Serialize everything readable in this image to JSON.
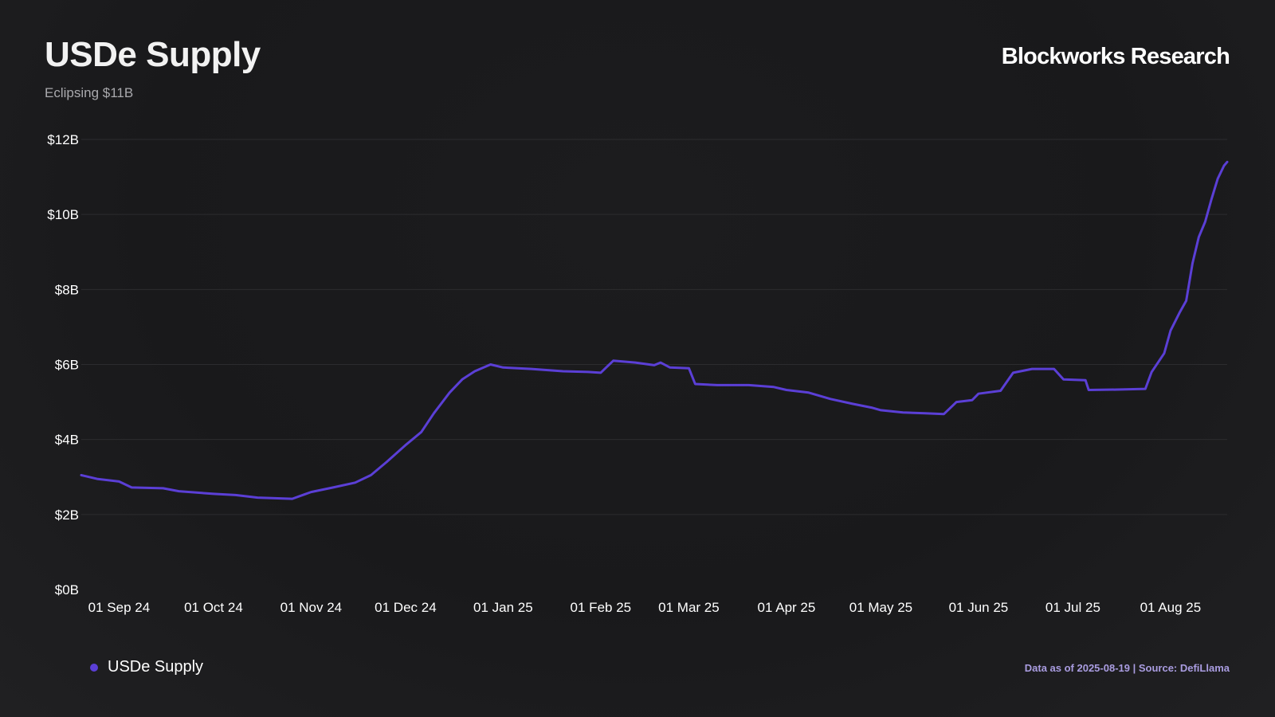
{
  "header": {
    "title": "USDe Supply",
    "subtitle": "Eclipsing $11B",
    "brand": "Blockworks Research"
  },
  "footer": {
    "note": "Data as of 2025-08-19 | Source: DefiLlama"
  },
  "colors": {
    "line": "#5b3fd6",
    "grid": "#2c2c2f",
    "background": "#1b1b1d"
  },
  "chart_data": {
    "type": "line",
    "title": "USDe Supply",
    "subtitle": "Eclipsing $11B",
    "xlabel": "",
    "ylabel": "",
    "ylim": [
      0,
      12
    ],
    "yticks": [
      0,
      2,
      4,
      6,
      8,
      10,
      12
    ],
    "ytick_labels": [
      "$0B",
      "$2B",
      "$4B",
      "$6B",
      "$8B",
      "$10B",
      "$12B"
    ],
    "xticks": [
      "2024-09-01",
      "2024-10-01",
      "2024-11-01",
      "2024-12-01",
      "2025-01-01",
      "2025-02-01",
      "2025-03-01",
      "2025-04-01",
      "2025-05-01",
      "2025-06-01",
      "2025-07-01",
      "2025-08-01"
    ],
    "xtick_labels": [
      "01 Sep 24",
      "01 Oct 24",
      "01 Nov 24",
      "01 Dec 24",
      "01 Jan 25",
      "01 Feb 25",
      "01 Mar 25",
      "01 Apr 25",
      "01 May 25",
      "01 Jun 25",
      "01 Jul 25",
      "01 Aug 25"
    ],
    "xlim": [
      "2024-08-20",
      "2025-08-19"
    ],
    "grid": true,
    "legend": "bottom-left",
    "series": [
      {
        "name": "USDe Supply",
        "color": "#5b3fd6",
        "points": [
          [
            "2024-08-20",
            3.05
          ],
          [
            "2024-08-25",
            2.95
          ],
          [
            "2024-09-01",
            2.88
          ],
          [
            "2024-09-05",
            2.72
          ],
          [
            "2024-09-15",
            2.7
          ],
          [
            "2024-09-20",
            2.62
          ],
          [
            "2024-10-01",
            2.55
          ],
          [
            "2024-10-08",
            2.52
          ],
          [
            "2024-10-15",
            2.45
          ],
          [
            "2024-10-26",
            2.42
          ],
          [
            "2024-11-01",
            2.6
          ],
          [
            "2024-11-08",
            2.72
          ],
          [
            "2024-11-15",
            2.85
          ],
          [
            "2024-11-20",
            3.05
          ],
          [
            "2024-11-25",
            3.4
          ],
          [
            "2024-12-01",
            3.85
          ],
          [
            "2024-12-06",
            4.2
          ],
          [
            "2024-12-10",
            4.7
          ],
          [
            "2024-12-15",
            5.25
          ],
          [
            "2024-12-19",
            5.6
          ],
          [
            "2024-12-23",
            5.82
          ],
          [
            "2024-12-28",
            6.0
          ],
          [
            "2025-01-01",
            5.92
          ],
          [
            "2025-01-10",
            5.88
          ],
          [
            "2025-01-20",
            5.82
          ],
          [
            "2025-01-28",
            5.8
          ],
          [
            "2025-02-01",
            5.78
          ],
          [
            "2025-02-05",
            6.1
          ],
          [
            "2025-02-12",
            6.05
          ],
          [
            "2025-02-18",
            5.98
          ],
          [
            "2025-02-20",
            6.05
          ],
          [
            "2025-02-23",
            5.92
          ],
          [
            "2025-03-01",
            5.9
          ],
          [
            "2025-03-03",
            5.48
          ],
          [
            "2025-03-10",
            5.45
          ],
          [
            "2025-03-20",
            5.45
          ],
          [
            "2025-03-28",
            5.4
          ],
          [
            "2025-04-01",
            5.32
          ],
          [
            "2025-04-08",
            5.25
          ],
          [
            "2025-04-15",
            5.08
          ],
          [
            "2025-04-22",
            4.95
          ],
          [
            "2025-04-28",
            4.85
          ],
          [
            "2025-05-01",
            4.78
          ],
          [
            "2025-05-08",
            4.72
          ],
          [
            "2025-05-15",
            4.7
          ],
          [
            "2025-05-21",
            4.68
          ],
          [
            "2025-05-25",
            5.0
          ],
          [
            "2025-05-30",
            5.05
          ],
          [
            "2025-06-01",
            5.22
          ],
          [
            "2025-06-08",
            5.3
          ],
          [
            "2025-06-12",
            5.78
          ],
          [
            "2025-06-18",
            5.88
          ],
          [
            "2025-06-25",
            5.88
          ],
          [
            "2025-06-28",
            5.6
          ],
          [
            "2025-07-05",
            5.58
          ],
          [
            "2025-07-06",
            5.32
          ],
          [
            "2025-07-15",
            5.33
          ],
          [
            "2025-07-24",
            5.35
          ],
          [
            "2025-07-26",
            5.8
          ],
          [
            "2025-07-30",
            6.3
          ],
          [
            "2025-08-01",
            6.9
          ],
          [
            "2025-08-04",
            7.4
          ],
          [
            "2025-08-06",
            7.7
          ],
          [
            "2025-08-08",
            8.7
          ],
          [
            "2025-08-10",
            9.4
          ],
          [
            "2025-08-12",
            9.8
          ],
          [
            "2025-08-14",
            10.4
          ],
          [
            "2025-08-16",
            10.95
          ],
          [
            "2025-08-18",
            11.3
          ],
          [
            "2025-08-19",
            11.4
          ]
        ]
      }
    ]
  }
}
